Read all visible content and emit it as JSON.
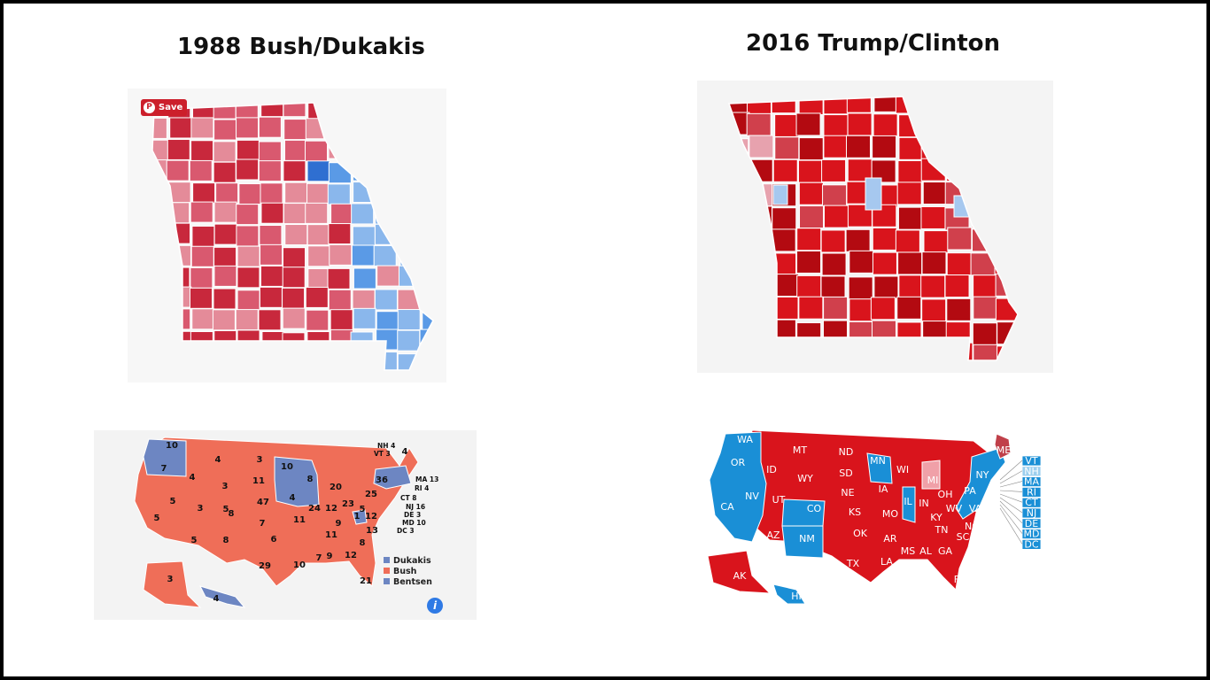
{
  "titles": {
    "left": "1988 Bush/Dukakis",
    "right": "2016 Trump/Clinton"
  },
  "save_button": {
    "label": "Save",
    "icon": "pinterest-icon"
  },
  "colors": {
    "rep_strong": "#c8283c",
    "rep_medium": "#d9596f",
    "rep_light": "#e48b99",
    "dem_light": "#8ab7ec",
    "dem_medium": "#5a9ae6",
    "dem_strong": "#2f6fd1",
    "red_2016": "#d9141c",
    "red_2016_dark": "#b30a11",
    "dem_2016": "#1a8fd6",
    "bush_ev": "#ef6e58",
    "dukakis_ev": "#6d86c2"
  },
  "map_1988": {
    "ev_labels": [
      "10",
      "7",
      "4",
      "3",
      "10",
      "4",
      "3",
      "11",
      "8",
      "4",
      "5",
      "3",
      "5",
      "47",
      "5",
      "8",
      "7",
      "5",
      "8",
      "6",
      "11",
      "24",
      "12",
      "23",
      "20",
      "25",
      "36",
      "4",
      "9",
      "11",
      "1",
      "12",
      "8",
      "13",
      "9",
      "12",
      "10",
      "7",
      "29",
      "21",
      "3",
      "4",
      "5"
    ],
    "callouts": [
      "NH 4",
      "VT 3",
      "MA 13",
      "RI 4",
      "CT 8",
      "NJ 16",
      "DE 3",
      "MD 10",
      "DC 3"
    ],
    "legend": [
      "Dukakis",
      "Bush",
      "Bentsen"
    ],
    "info_icon": "i"
  },
  "map_2016": {
    "state_labels": [
      "WA",
      "OR",
      "CA",
      "NV",
      "ID",
      "MT",
      "WY",
      "UT",
      "AZ",
      "CO",
      "NM",
      "ND",
      "SD",
      "NE",
      "KS",
      "OK",
      "TX",
      "MN",
      "IA",
      "MO",
      "AR",
      "LA",
      "WI",
      "IL",
      "MI",
      "IN",
      "OH",
      "KY",
      "TN",
      "MS",
      "AL",
      "GA",
      "FL",
      "SC",
      "NC",
      "VA",
      "WV",
      "PA",
      "NY",
      "ME",
      "AK",
      "HI"
    ],
    "small_states": [
      "VT",
      "NH",
      "MA",
      "RI",
      "CT",
      "NJ",
      "DE",
      "MD",
      "DC"
    ]
  }
}
